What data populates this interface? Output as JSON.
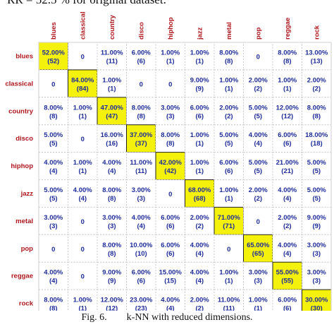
{
  "header_text": "RR = 52.5 % for original dataset.",
  "caption": "Fig. 6.        k-NN with reduced dimensions.",
  "chart_data": {
    "type": "heatmap",
    "title": "",
    "row_labels": [
      "blues",
      "classical",
      "country",
      "disco",
      "hiphop",
      "jazz",
      "metal",
      "pop",
      "reggae",
      "rock"
    ],
    "col_labels": [
      "blues",
      "classical",
      "country",
      "disco",
      "hiphop",
      "jazz",
      "metal",
      "pop",
      "reggae",
      "rock"
    ],
    "percentages": [
      [
        "52.00%",
        "0",
        "11.00%",
        "6.00%",
        "1.00%",
        "1.00%",
        "8.00%",
        "0",
        "8.00%",
        "13.00%"
      ],
      [
        "0",
        "84.00%",
        "1.00%",
        "0",
        "0",
        "9.00%",
        "1.00%",
        "2.00%",
        "1.00%",
        "2.00%"
      ],
      [
        "8.00%",
        "1.00%",
        "47.00%",
        "8.00%",
        "3.00%",
        "6.00%",
        "2.00%",
        "5.00%",
        "12.00%",
        "8.00%"
      ],
      [
        "5.00%",
        "0",
        "16.00%",
        "37.00%",
        "8.00%",
        "1.00%",
        "5.00%",
        "4.00%",
        "6.00%",
        "18.00%"
      ],
      [
        "4.00%",
        "1.00%",
        "4.00%",
        "11.00%",
        "42.00%",
        "1.00%",
        "6.00%",
        "5.00%",
        "21.00%",
        "5.00%"
      ],
      [
        "5.00%",
        "4.00%",
        "8.00%",
        "3.00%",
        "0",
        "68.00%",
        "1.00%",
        "2.00%",
        "4.00%",
        "5.00%"
      ],
      [
        "3.00%",
        "0",
        "3.00%",
        "4.00%",
        "6.00%",
        "2.00%",
        "71.00%",
        "0",
        "2.00%",
        "9.00%"
      ],
      [
        "0",
        "0",
        "8.00%",
        "10.00%",
        "6.00%",
        "4.00%",
        "0",
        "65.00%",
        "4.00%",
        "3.00%"
      ],
      [
        "4.00%",
        "0",
        "9.00%",
        "6.00%",
        "15.00%",
        "4.00%",
        "1.00%",
        "3.00%",
        "55.00%",
        "3.00%"
      ],
      [
        "8.00%",
        "1.00%",
        "12.00%",
        "23.00%",
        "4.00%",
        "2.00%",
        "11.00%",
        "1.00%",
        "6.00%",
        "30.00%"
      ]
    ],
    "counts": [
      [
        "(52)",
        "",
        "(11)",
        "(6)",
        "(1)",
        "(1)",
        "(8)",
        "",
        "(8)",
        "(13)"
      ],
      [
        "",
        "(84)",
        "(1)",
        "",
        "",
        "(9)",
        "(1)",
        "(2)",
        "(1)",
        "(2)"
      ],
      [
        "(8)",
        "(1)",
        "(47)",
        "(8)",
        "(3)",
        "(6)",
        "(2)",
        "(5)",
        "(12)",
        "(8)"
      ],
      [
        "(5)",
        "",
        "(16)",
        "(37)",
        "(8)",
        "(1)",
        "(5)",
        "(4)",
        "(6)",
        "(18)"
      ],
      [
        "(4)",
        "(1)",
        "(4)",
        "(11)",
        "(42)",
        "(1)",
        "(6)",
        "(5)",
        "(21)",
        "(5)"
      ],
      [
        "(5)",
        "(4)",
        "(8)",
        "(3)",
        "",
        "(68)",
        "(1)",
        "(2)",
        "(4)",
        "(5)"
      ],
      [
        "(3)",
        "",
        "(3)",
        "(4)",
        "(6)",
        "(2)",
        "(71)",
        "",
        "(2)",
        "(9)"
      ],
      [
        "",
        "",
        "(8)",
        "(10)",
        "(6)",
        "(4)",
        "",
        "(65)",
        "(4)",
        "(3)"
      ],
      [
        "(4)",
        "",
        "(9)",
        "(6)",
        "(15)",
        "(4)",
        "(1)",
        "(3)",
        "(55)",
        "(3)"
      ],
      [
        "(8)",
        "(1)",
        "(12)",
        "(23)",
        "(4)",
        "(2)",
        "(11)",
        "(1)",
        "(6)",
        "(30)"
      ]
    ],
    "colors": {
      "diagonal_fill": "#f4f20c",
      "value_text": "#1f2d9b",
      "label_text": "#b0161c"
    }
  }
}
